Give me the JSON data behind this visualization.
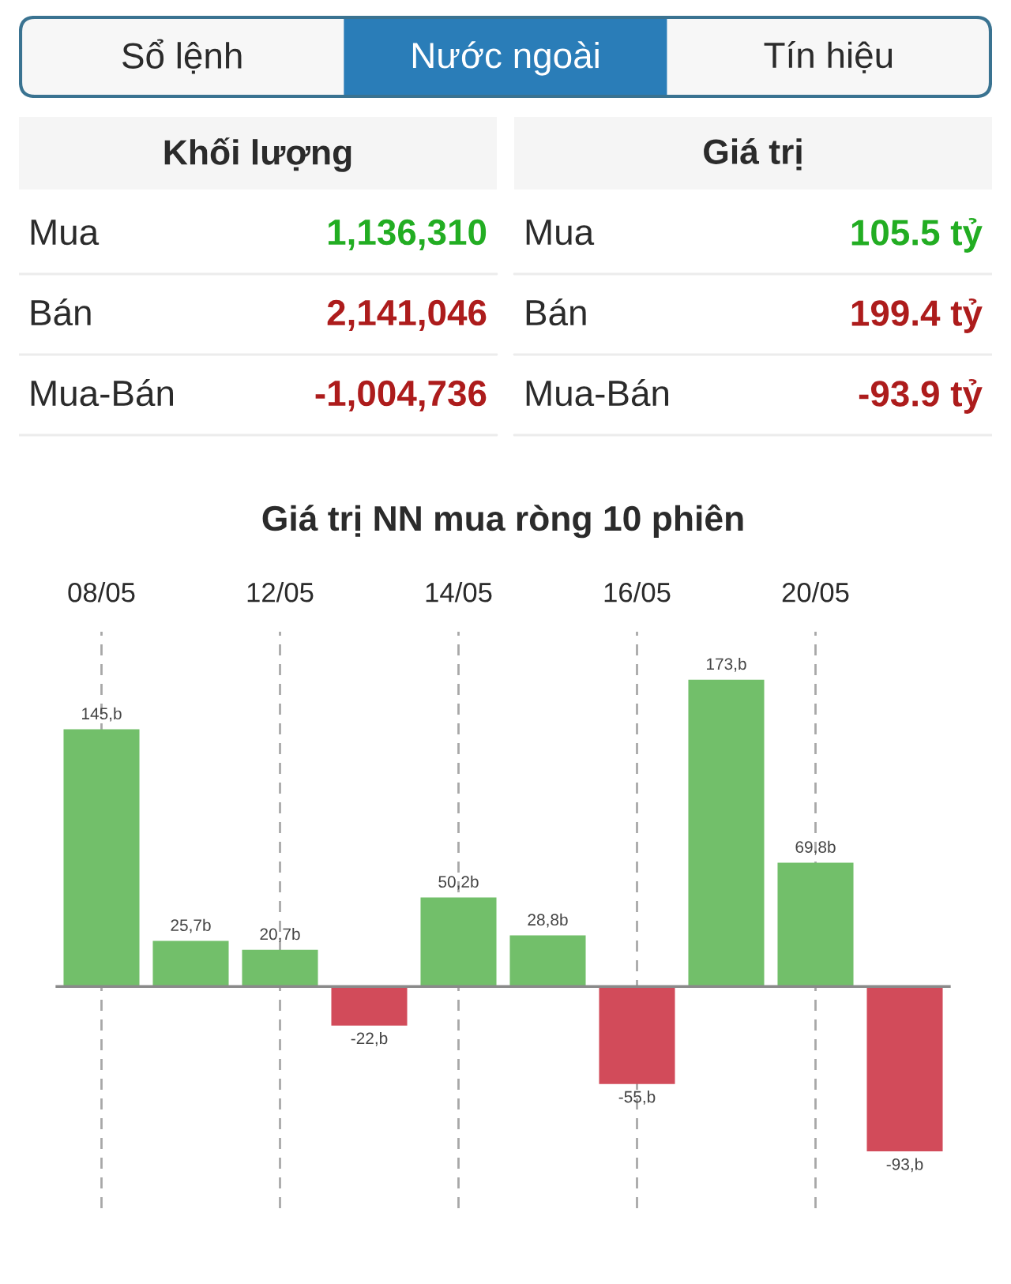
{
  "chart_data": [
    {
      "type": "other",
      "categories": [
        "Sổ lệnh",
        "Nước ngoài",
        "Tín hiệu"
      ],
      "colors": [
        "#f7f7f7",
        "#2a7db8",
        "#f7f7f7"
      ]
    },
    {
      "type": "other",
      "categories": [
        "Mua",
        "Bán",
        "Mua-Bán"
      ],
      "series": [
        {
          "name": "Khối lượng",
          "values": [
            1136310,
            2141046,
            -1004736
          ],
          "value_labels": [
            "1,136,310",
            "2,141,046",
            "-1,004,736"
          ],
          "colors": [
            "#22ad22",
            "#ad1c1c",
            "#ad1c1c"
          ]
        },
        {
          "name": "Giá trị",
          "values": [
            105.5,
            199.4,
            -93.9
          ],
          "value_labels": [
            "105.5 tỷ",
            "199.4 tỷ",
            "-93.9 tỷ"
          ],
          "colors": [
            "#22ad22",
            "#ad1c1c",
            "#ad1c1c"
          ]
        }
      ]
    },
    {
      "type": "bar",
      "title": "Giá trị NN mua ròng 10 phiên",
      "categories": [
        "08/05",
        null,
        "12/05",
        null,
        "14/05",
        null,
        "16/05",
        null,
        "20/05",
        null
      ],
      "values": [
        145,
        25.7,
        20.7,
        -22,
        50.2,
        28.8,
        -55,
        173,
        69.8,
        -93
      ],
      "value_labels": [
        "145,b",
        "25,7b",
        "20,7b",
        "-22,b",
        "50,2b",
        "28,8b",
        "-55,b",
        "173,b",
        "69,8b",
        "-93,b"
      ],
      "colors": [
        "#72bf6a",
        "#72bf6a",
        "#72bf6a",
        "#d24b5a",
        "#72bf6a",
        "#72bf6a",
        "#d24b5a",
        "#72bf6a",
        "#72bf6a",
        "#d24b5a"
      ],
      "ylim": [
        -125,
        200
      ],
      "tick_labels": "x",
      "grid": "x"
    }
  ]
}
